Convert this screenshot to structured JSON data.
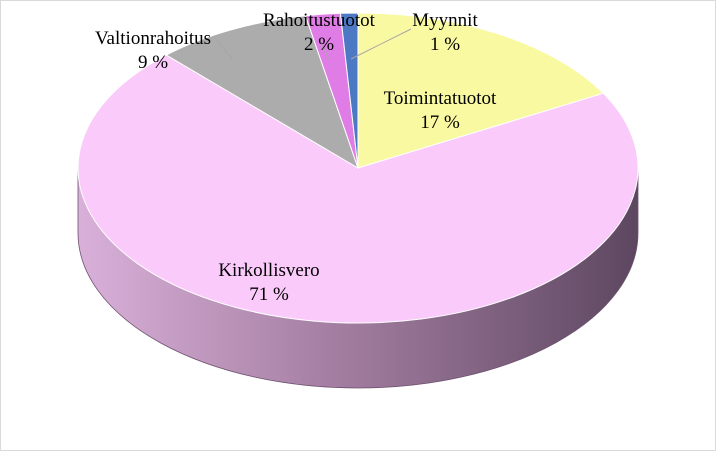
{
  "chart_data": {
    "type": "pie",
    "style": "3d",
    "title": "",
    "legend": "none",
    "slices": [
      {
        "name": "Toimintatuotot",
        "value": 17,
        "pct_label": "17 %",
        "color": "#f9f9a1"
      },
      {
        "name": "Kirkollisvero",
        "value": 71,
        "pct_label": "71 %",
        "color": "#facafa"
      },
      {
        "name": "Valtionrahoitus",
        "value": 9,
        "pct_label": "9 %",
        "color": "#acacac"
      },
      {
        "name": "Rahoitustuotot",
        "value": 2,
        "pct_label": "2 %",
        "color": "#e07ce6"
      },
      {
        "name": "Myynnit",
        "value": 1,
        "pct_label": "1 %",
        "color": "#4d78c4"
      }
    ]
  }
}
